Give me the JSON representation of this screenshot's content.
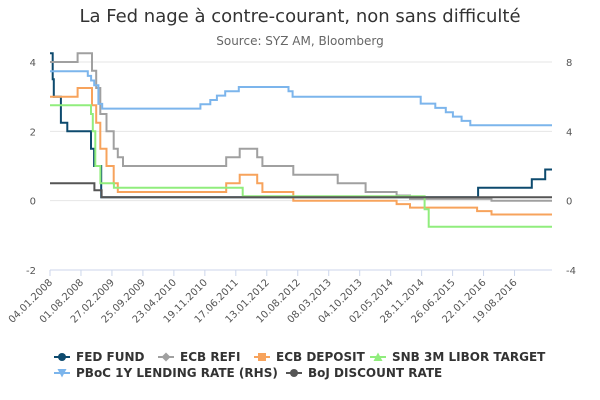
{
  "chart_data": {
    "type": "line",
    "title": "La Fed nage à contre-courant, non sans difficulté",
    "subtitle": "Source: SYZ AM, Bloomberg",
    "x_range": [
      "2008-01-04",
      "2017-04-30"
    ],
    "y_left": {
      "range": [
        -2,
        4
      ],
      "ticks": [
        -2,
        0,
        2,
        4
      ]
    },
    "y_right": {
      "range": [
        -4,
        8
      ],
      "ticks": [
        -4,
        0,
        4,
        8
      ]
    },
    "x_ticks": [
      "04.01.2008",
      "01.08.2008",
      "27.02.2009",
      "25.09.2009",
      "23.04.2010",
      "19.11.2010",
      "17.06.2011",
      "13.01.2012",
      "10.08.2012",
      "08.03.2013",
      "04.10.2013",
      "02.05.2014",
      "28.11.2014",
      "26.06.2015",
      "22.01.2016",
      "19.08.2016"
    ],
    "grid": true,
    "legend_position": "bottom",
    "series": [
      {
        "name": "FED FUND",
        "axis": "left",
        "color": "#0d4a6e",
        "marker": "circle",
        "points": [
          [
            "2008-01-04",
            4.25
          ],
          [
            "2008-01-22",
            3.5
          ],
          [
            "2008-01-30",
            3.0
          ],
          [
            "2008-03-18",
            2.25
          ],
          [
            "2008-04-30",
            2.0
          ],
          [
            "2008-10-08",
            1.5
          ],
          [
            "2008-10-29",
            1.0
          ],
          [
            "2008-12-16",
            0.1
          ],
          [
            "2015-12-16",
            0.37
          ],
          [
            "2016-12-14",
            0.62
          ],
          [
            "2017-03-15",
            0.9
          ],
          [
            "2017-04-30",
            0.9
          ]
        ]
      },
      {
        "name": "ECB REFI",
        "axis": "left",
        "color": "#a0a0a0",
        "marker": "diamond",
        "points": [
          [
            "2008-01-04",
            4.0
          ],
          [
            "2008-07-09",
            4.25
          ],
          [
            "2008-10-15",
            3.75
          ],
          [
            "2008-11-12",
            3.25
          ],
          [
            "2008-12-10",
            2.5
          ],
          [
            "2009-01-21",
            2.0
          ],
          [
            "2009-03-11",
            1.5
          ],
          [
            "2009-04-08",
            1.25
          ],
          [
            "2009-05-13",
            1.0
          ],
          [
            "2011-04-13",
            1.25
          ],
          [
            "2011-07-13",
            1.5
          ],
          [
            "2011-11-09",
            1.25
          ],
          [
            "2011-12-14",
            1.0
          ],
          [
            "2012-07-11",
            0.75
          ],
          [
            "2013-05-08",
            0.5
          ],
          [
            "2013-11-13",
            0.25
          ],
          [
            "2014-06-11",
            0.15
          ],
          [
            "2014-09-10",
            0.05
          ],
          [
            "2016-03-16",
            0.0
          ],
          [
            "2017-04-30",
            0.0
          ]
        ]
      },
      {
        "name": "ECB DEPOSIT",
        "axis": "left",
        "color": "#f7a35c",
        "marker": "square",
        "points": [
          [
            "2008-01-04",
            3.0
          ],
          [
            "2008-07-09",
            3.25
          ],
          [
            "2008-10-15",
            2.75
          ],
          [
            "2008-11-12",
            2.25
          ],
          [
            "2008-12-10",
            1.5
          ],
          [
            "2009-01-21",
            1.0
          ],
          [
            "2009-03-11",
            0.5
          ],
          [
            "2009-04-08",
            0.25
          ],
          [
            "2011-04-13",
            0.5
          ],
          [
            "2011-07-13",
            0.75
          ],
          [
            "2011-11-09",
            0.5
          ],
          [
            "2011-12-14",
            0.25
          ],
          [
            "2012-07-11",
            0.0
          ],
          [
            "2014-06-11",
            -0.1
          ],
          [
            "2014-09-10",
            -0.2
          ],
          [
            "2015-12-09",
            -0.3
          ],
          [
            "2016-03-16",
            -0.4
          ],
          [
            "2017-04-30",
            -0.4
          ]
        ]
      },
      {
        "name": "SNB 3M LIBOR TARGET",
        "axis": "left",
        "color": "#90ed7d",
        "marker": "triangle",
        "points": [
          [
            "2008-01-04",
            2.75
          ],
          [
            "2008-10-08",
            2.5
          ],
          [
            "2008-10-20",
            2.0
          ],
          [
            "2008-11-06",
            1.0
          ],
          [
            "2008-11-20",
            1.0
          ],
          [
            "2008-12-11",
            0.5
          ],
          [
            "2009-03-12",
            0.375
          ],
          [
            "2011-08-03",
            0.125
          ],
          [
            "2014-12-18",
            -0.25
          ],
          [
            "2015-01-15",
            -0.75
          ],
          [
            "2017-04-30",
            -0.75
          ]
        ]
      },
      {
        "name": "PBoC 1Y LENDING RATE (RHS)",
        "axis": "right",
        "color": "#7cb5ec",
        "marker": "triangle-down",
        "points": [
          [
            "2008-01-04",
            7.47
          ],
          [
            "2008-09-16",
            7.2
          ],
          [
            "2008-10-09",
            6.93
          ],
          [
            "2008-10-30",
            6.66
          ],
          [
            "2008-11-27",
            5.58
          ],
          [
            "2008-12-23",
            5.31
          ],
          [
            "2010-10-20",
            5.56
          ],
          [
            "2010-12-26",
            5.81
          ],
          [
            "2011-02-09",
            6.06
          ],
          [
            "2011-04-06",
            6.31
          ],
          [
            "2011-07-07",
            6.56
          ],
          [
            "2012-06-08",
            6.31
          ],
          [
            "2012-07-06",
            6.0
          ],
          [
            "2014-11-22",
            5.6
          ],
          [
            "2015-03-01",
            5.35
          ],
          [
            "2015-05-11",
            5.1
          ],
          [
            "2015-06-28",
            4.85
          ],
          [
            "2015-08-26",
            4.6
          ],
          [
            "2015-10-24",
            4.35
          ],
          [
            "2017-04-30",
            4.35
          ]
        ]
      },
      {
        "name": "BoJ DISCOUNT RATE",
        "axis": "left",
        "color": "#555555",
        "marker": "circle",
        "points": [
          [
            "2008-01-04",
            0.5
          ],
          [
            "2008-10-31",
            0.3
          ],
          [
            "2008-12-19",
            0.1
          ],
          [
            "2017-04-30",
            0.1
          ]
        ]
      }
    ]
  }
}
